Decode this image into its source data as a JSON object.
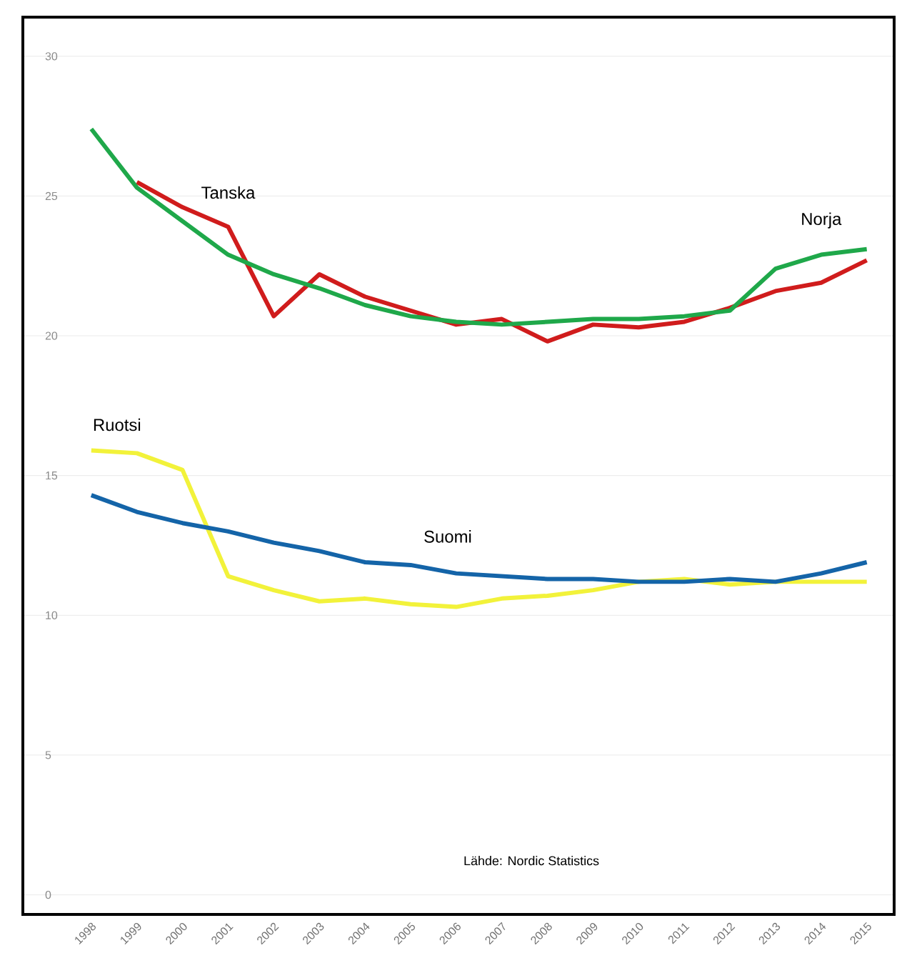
{
  "chart_data": {
    "type": "line",
    "categories": [
      "1998",
      "1999",
      "2000",
      "2001",
      "2002",
      "2003",
      "2004",
      "2005",
      "2006",
      "2007",
      "2008",
      "2009",
      "2010",
      "2011",
      "2012",
      "2013",
      "2014",
      "2015"
    ],
    "series": [
      {
        "name": "Tanska",
        "color": "#d01c1c",
        "values": [
          null,
          25.5,
          24.6,
          23.9,
          20.7,
          22.2,
          21.4,
          20.9,
          20.4,
          20.6,
          19.8,
          20.4,
          20.3,
          20.5,
          21.0,
          21.6,
          21.9,
          22.7
        ]
      },
      {
        "name": "Norja",
        "color": "#1fa84a",
        "values": [
          27.4,
          25.3,
          24.1,
          22.9,
          22.2,
          21.7,
          21.1,
          20.7,
          20.5,
          20.4,
          20.5,
          20.6,
          20.6,
          20.7,
          20.9,
          22.4,
          22.9,
          23.1
        ]
      },
      {
        "name": "Ruotsi",
        "color": "#f2f23a",
        "values": [
          15.9,
          15.8,
          15.2,
          11.4,
          10.9,
          10.5,
          10.6,
          10.4,
          10.3,
          10.6,
          10.7,
          10.9,
          11.2,
          11.3,
          11.1,
          11.2,
          11.2,
          11.2
        ]
      },
      {
        "name": "Suomi",
        "color": "#1464a8",
        "values": [
          14.3,
          13.7,
          13.3,
          13.0,
          12.6,
          12.3,
          11.9,
          11.8,
          11.5,
          11.4,
          11.3,
          11.3,
          11.2,
          11.2,
          11.3,
          11.2,
          11.5,
          11.9
        ]
      }
    ],
    "ylim": [
      -0.7,
      31.4
    ],
    "yticks": [
      0,
      5,
      10,
      15,
      20,
      25,
      30
    ],
    "grid": "y",
    "marker": "none",
    "line_style": "solid",
    "annotations": [
      "Lähde: Nordic Statistics"
    ]
  }
}
